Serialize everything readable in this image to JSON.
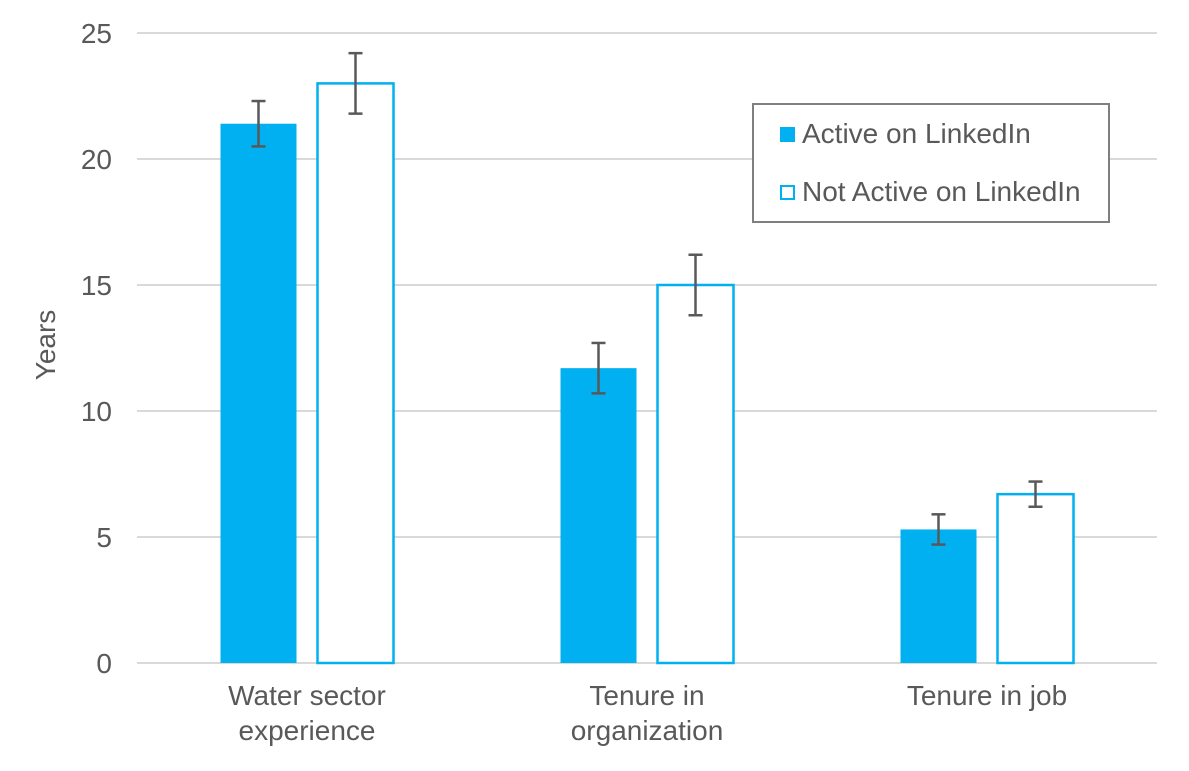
{
  "chart_data": {
    "type": "bar",
    "title": "",
    "categories": [
      "Water sector experience",
      "Tenure in organization",
      "Tenure in job"
    ],
    "series": [
      {
        "name": "Active on LinkedIn",
        "values": [
          21.4,
          11.7,
          5.3
        ],
        "error_plus_minus": [
          0.9,
          1.0,
          0.6
        ],
        "style": "solid"
      },
      {
        "name": "Not Active on LinkedIn",
        "values": [
          23.0,
          15.0,
          6.7
        ],
        "error_plus_minus": [
          1.2,
          1.2,
          0.5
        ],
        "style": "outline"
      }
    ],
    "xlabel": "",
    "ylabel": "Years",
    "ylim": [
      0,
      25
    ],
    "ytick_step": 5,
    "ytick_labels": [
      "0",
      "5",
      "10",
      "15",
      "20",
      "25"
    ],
    "grid": true,
    "error_bars": true,
    "legend_position": "upper-right"
  },
  "legend": {
    "items": [
      {
        "label": "Active on LinkedIn",
        "swatch_icon": "solid-square-icon"
      },
      {
        "label": "Not Active on LinkedIn",
        "swatch_icon": "outline-square-icon"
      }
    ]
  },
  "colors": {
    "accent": "#00B0F0",
    "bar_fill_active": "#00B0F0",
    "bar_fill_not_active": "#FFFFFF",
    "bar_outline": "#00B0F0",
    "error_bar": "#595959",
    "text": "#595959",
    "gridline": "#D9D9D9",
    "axis_line": "#D9D9D9",
    "legend_border": "#7F7F7F",
    "background": "#FFFFFF"
  }
}
